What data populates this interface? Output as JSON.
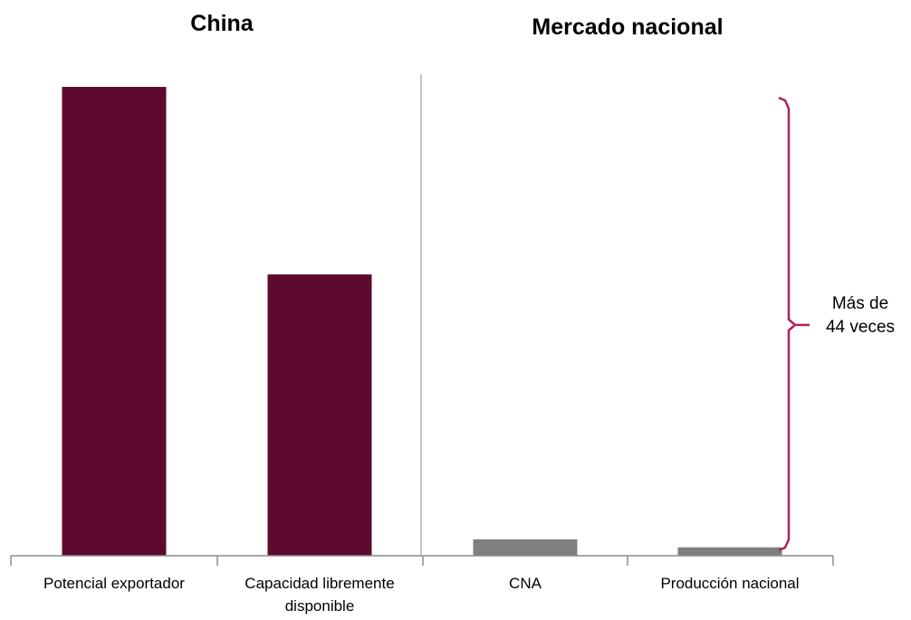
{
  "chart_data": {
    "type": "bar",
    "panels": [
      {
        "title": "China",
        "categories": [
          0,
          1
        ]
      },
      {
        "title": "Mercado nacional",
        "categories": [
          2,
          3
        ]
      }
    ],
    "categories": [
      [
        "Potencial exportador"
      ],
      [
        "Capacidad libremente",
        "disponible"
      ],
      [
        "CNA"
      ],
      [
        "Producción nacional"
      ]
    ],
    "values": [
      100,
      60,
      3.5,
      1.8
    ],
    "bar_colors": [
      "#5e0a2e",
      "#5e0a2e",
      "#808080",
      "#808080"
    ],
    "ylim": [
      0,
      100
    ],
    "grid": false,
    "annotation": {
      "lines": [
        "Más de",
        "44 veces"
      ],
      "color": "#b0205a"
    }
  }
}
